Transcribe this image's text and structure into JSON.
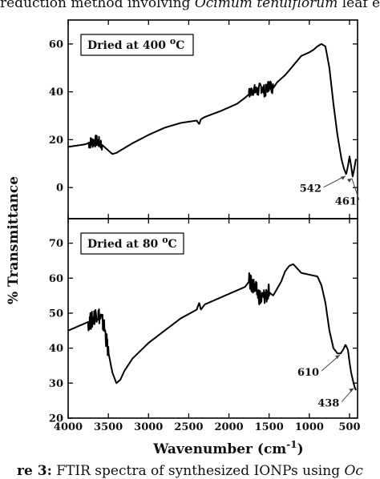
{
  "caption_top": {
    "pre": "reduction method involving ",
    "italic": "Ocimum tenuiflorum",
    "post": " leaf ex"
  },
  "caption_bottom": {
    "bold": "re 3:",
    "text": " FTIR spectra of synthesized IONPs using ",
    "italic": "Oc"
  },
  "chart_data": {
    "type": "line",
    "xlabel": "Wavenumber (cm",
    "xlabel_sup": "-1",
    "xlabel_close": ")",
    "ylabel": "% Transmittance",
    "xlim": [
      4000,
      400
    ],
    "x_ticks": [
      4000,
      3500,
      3000,
      2500,
      2000,
      1500,
      1000,
      500
    ],
    "panels": [
      {
        "label": "Dried at 400 ",
        "label_sup": "o",
        "label_unit": "C",
        "ylim": [
          -13,
          70
        ],
        "y_ticks": [
          0,
          20,
          40,
          60
        ],
        "series": {
          "x": [
            4000,
            3900,
            3800,
            3700,
            3650,
            3600,
            3500,
            3450,
            3400,
            3300,
            3200,
            3000,
            2800,
            2600,
            2400,
            2370,
            2350,
            2300,
            2100,
            1900,
            1800,
            1750,
            1700,
            1650,
            1600,
            1550,
            1500,
            1450,
            1400,
            1300,
            1200,
            1100,
            1000,
            950,
            900,
            850,
            800,
            750,
            700,
            650,
            600,
            570,
            542,
            520,
            500,
            480,
            461,
            440,
            420
          ],
          "y": [
            17,
            17.5,
            18,
            19,
            19.5,
            18.5,
            15.5,
            14,
            14.5,
            16.5,
            18.5,
            22,
            25,
            27,
            28,
            26.5,
            28.5,
            29.5,
            32,
            35,
            37.5,
            39,
            41,
            40,
            42,
            40,
            43,
            41.5,
            44,
            47,
            51,
            55,
            56.5,
            57.5,
            59,
            60,
            59,
            50,
            35,
            22,
            12,
            8,
            5.5,
            9,
            13,
            9,
            4.5,
            8,
            12
          ],
          "noise_ranges": [
            [
              3750,
              3580
            ],
            [
              1750,
              1450
            ]
          ]
        },
        "annotations": [
          {
            "text": "542",
            "x": 542,
            "y": 5.5
          },
          {
            "text": "461",
            "x": 461,
            "y": 4.5
          }
        ]
      },
      {
        "label": "Dried at 80 ",
        "label_sup": "o",
        "label_unit": "C",
        "ylim": [
          20,
          77
        ],
        "y_ticks": [
          20,
          30,
          40,
          50,
          60,
          70
        ],
        "series": {
          "x": [
            4000,
            3900,
            3800,
            3700,
            3650,
            3600,
            3550,
            3500,
            3450,
            3400,
            3350,
            3300,
            3200,
            3000,
            2800,
            2600,
            2400,
            2370,
            2350,
            2300,
            2100,
            1900,
            1800,
            1750,
            1700,
            1650,
            1600,
            1550,
            1500,
            1450,
            1400,
            1350,
            1300,
            1250,
            1200,
            1100,
            1000,
            900,
            850,
            800,
            750,
            700,
            650,
            610,
            580,
            550,
            520,
            500,
            480,
            460,
            438,
            420
          ],
          "y": [
            45,
            46,
            47,
            48,
            50,
            49,
            46,
            39,
            33,
            30,
            31,
            33.5,
            37,
            41.5,
            45,
            48.5,
            51,
            53,
            51,
            52.5,
            54.5,
            56.5,
            57.5,
            59,
            58,
            56,
            54,
            55,
            56,
            55,
            57,
            59,
            62,
            63.5,
            64,
            61.5,
            61,
            60.5,
            58,
            53,
            45,
            40,
            38.5,
            38.5,
            39.5,
            41,
            39.5,
            36,
            33,
            31,
            29,
            28
          ],
          "noise_ranges": [
            [
              3750,
              3500
            ],
            [
              1750,
              1500
            ]
          ]
        },
        "annotations": [
          {
            "text": "610",
            "x": 610,
            "y": 38.5
          },
          {
            "text": "438",
            "x": 438,
            "y": 29
          }
        ]
      }
    ]
  },
  "colors": {
    "line": "#000000",
    "frame": "#000000",
    "arrow": "#444444"
  }
}
